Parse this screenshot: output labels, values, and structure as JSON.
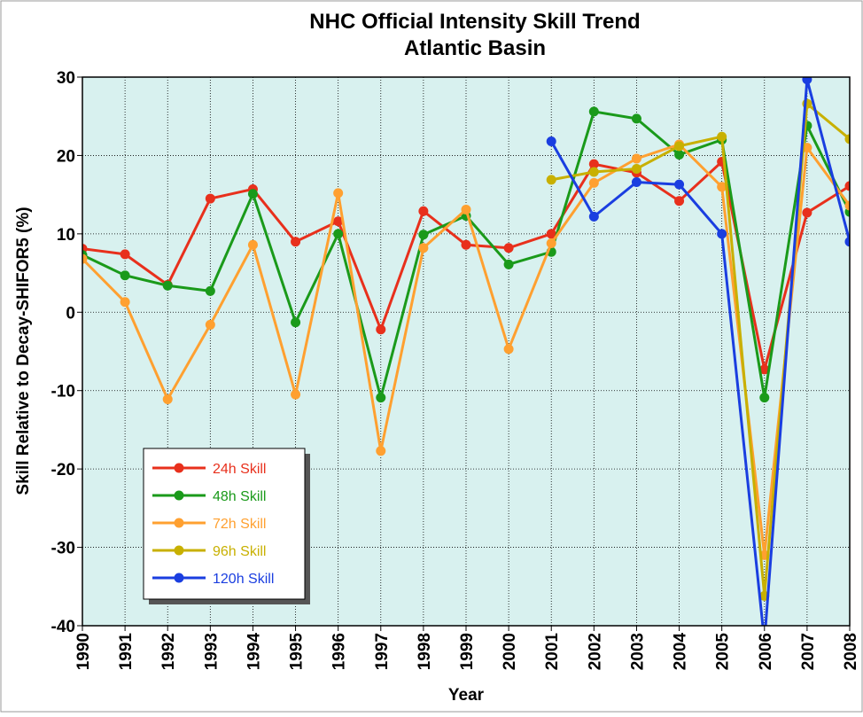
{
  "chart_data": {
    "type": "line",
    "title": "NHC Official Intensity Skill Trend",
    "subtitle": "Atlantic Basin",
    "x_label": "Year",
    "y_label": "Skill Relative to Decay-SHIFOR5 (%)",
    "x": [
      1990,
      1991,
      1992,
      1993,
      1994,
      1995,
      1996,
      1997,
      1998,
      1999,
      2000,
      2001,
      2002,
      2003,
      2004,
      2005,
      2006,
      2007,
      2008
    ],
    "xlim": [
      1990,
      2008
    ],
    "xticks": [
      1990,
      1991,
      1992,
      1993,
      1994,
      1995,
      1996,
      1997,
      1998,
      1999,
      2000,
      2001,
      2002,
      2003,
      2004,
      2005,
      2006,
      2007,
      2008
    ],
    "ylim": [
      -40,
      30
    ],
    "yticks": [
      -40,
      -30,
      -20,
      -10,
      0,
      10,
      20,
      30
    ],
    "grid": true,
    "legend": "lower left",
    "series": [
      {
        "name": "24h Skill",
        "color": "#e8301c",
        "values": [
          8.1,
          7.4,
          3.5,
          14.5,
          15.7,
          9.0,
          11.6,
          -2.2,
          12.9,
          8.6,
          8.2,
          10.0,
          18.9,
          17.8,
          14.2,
          19.2,
          -7.3,
          12.7,
          16.1
        ]
      },
      {
        "name": "48h Skill",
        "color": "#1a9a1a",
        "values": [
          7.3,
          4.7,
          3.4,
          2.7,
          15.1,
          -1.3,
          10.0,
          -10.9,
          9.9,
          12.3,
          6.1,
          7.7,
          25.6,
          24.7,
          20.1,
          22.0,
          -10.9,
          23.8,
          12.8
        ]
      },
      {
        "name": "72h Skill",
        "color": "#ffa030",
        "values": [
          6.8,
          1.3,
          -11.1,
          -1.6,
          8.6,
          -10.5,
          15.2,
          -17.7,
          8.2,
          13.1,
          -4.7,
          8.8,
          16.5,
          19.6,
          21.4,
          16.0,
          -31.0,
          21.0,
          13.6
        ]
      },
      {
        "name": "96h Skill",
        "color": "#c8b000",
        "values": [
          null,
          null,
          null,
          null,
          null,
          null,
          null,
          null,
          null,
          null,
          null,
          16.9,
          17.9,
          18.3,
          21.2,
          22.4,
          -36.2,
          26.6,
          22.1
        ]
      },
      {
        "name": "120h Skill",
        "color": "#1a3ee0",
        "values": [
          null,
          null,
          null,
          null,
          null,
          null,
          null,
          null,
          null,
          null,
          null,
          21.8,
          12.2,
          16.6,
          16.3,
          10.0,
          -42.0,
          29.7,
          9.0
        ]
      }
    ]
  }
}
